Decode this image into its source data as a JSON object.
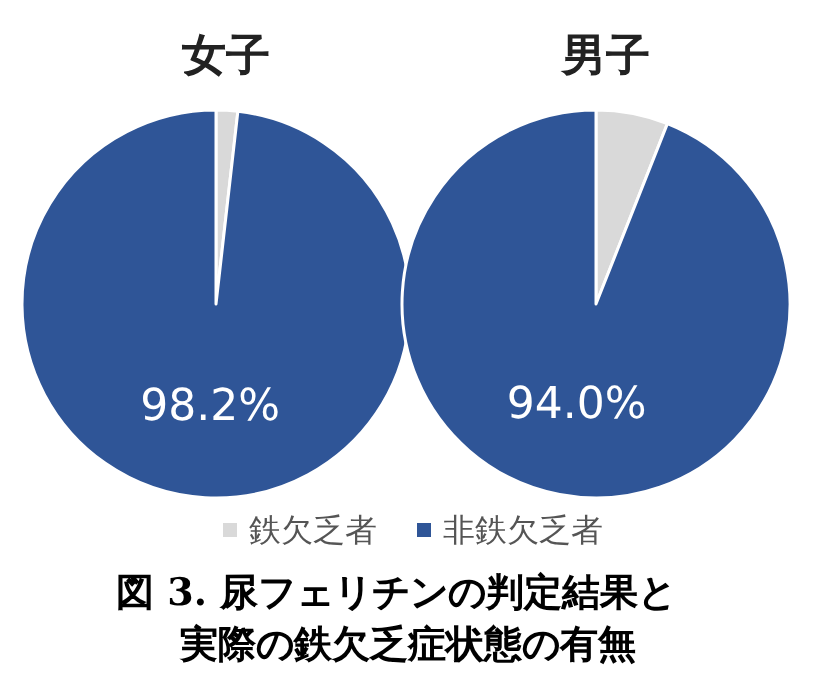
{
  "chart_data": {
    "type": "pie",
    "categories": [
      "鉄欠乏者",
      "非鉄欠乏者"
    ],
    "colors": [
      "#d9d9d9",
      "#2f5597"
    ],
    "legend": "bottom",
    "annotations": [
      "図 3. 尿フェリチンの判定結果と",
      "実際の鉄欠乏症状態の有無"
    ],
    "series": [
      {
        "name": "女子",
        "values": [
          1.8,
          98.2
        ],
        "value_labels": [
          null,
          "98.2%"
        ]
      },
      {
        "name": "男子",
        "values": [
          6.0,
          94.0
        ],
        "value_labels": [
          null,
          "94.0%"
        ]
      }
    ]
  }
}
